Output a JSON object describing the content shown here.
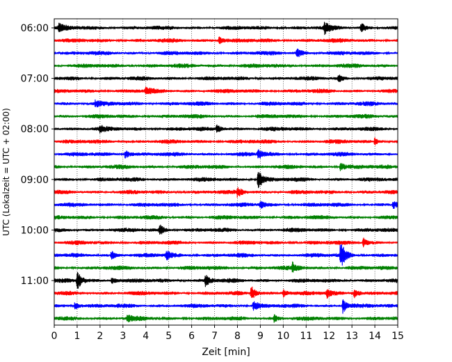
{
  "chart_data": {
    "type": "line",
    "title": "",
    "xlabel": "Zeit  [min]",
    "ylabel": "UTC (Lokalzeit = UTC + 02:00)",
    "xlim": [
      0,
      15
    ],
    "x_ticks": [
      0,
      1,
      2,
      3,
      4,
      5,
      6,
      7,
      8,
      9,
      10,
      11,
      12,
      13,
      14,
      15
    ],
    "x_tick_labels": [
      "0",
      "1",
      "2",
      "3",
      "4",
      "5",
      "6",
      "7",
      "8",
      "9",
      "10",
      "11",
      "12",
      "13",
      "14",
      "15"
    ],
    "y_tick_labels": [
      "06:00",
      "07:00",
      "08:00",
      "09:00",
      "10:00",
      "11:00"
    ],
    "grid": "vertical dotted lines at each minute",
    "series_colors": [
      "#000000",
      "#ff0000",
      "#0000ff",
      "#008000"
    ],
    "traces_per_hour": 4,
    "minutes_per_trace": 15,
    "series": [
      {
        "start": "06:00",
        "color": "#000000",
        "events": [
          {
            "t": 0.2,
            "a": 1.2
          },
          {
            "t": 11.8,
            "a": 1.6
          },
          {
            "t": 13.4,
            "a": 1.3
          }
        ]
      },
      {
        "start": "06:15",
        "color": "#ff0000",
        "events": [
          {
            "t": 7.2,
            "a": 1.2
          }
        ]
      },
      {
        "start": "06:30",
        "color": "#0000ff",
        "events": [
          {
            "t": 10.6,
            "a": 1.3
          }
        ]
      },
      {
        "start": "06:45",
        "color": "#008000",
        "events": []
      },
      {
        "start": "07:00",
        "color": "#000000",
        "events": [
          {
            "t": 12.4,
            "a": 1.0
          }
        ]
      },
      {
        "start": "07:15",
        "color": "#ff0000",
        "events": [
          {
            "t": 4.0,
            "a": 1.0
          }
        ]
      },
      {
        "start": "07:30",
        "color": "#0000ff",
        "events": [
          {
            "t": 1.8,
            "a": 1.0
          }
        ]
      },
      {
        "start": "07:45",
        "color": "#008000",
        "events": []
      },
      {
        "start": "08:00",
        "color": "#000000",
        "events": [
          {
            "t": 2.0,
            "a": 1.0
          },
          {
            "t": 7.1,
            "a": 1.2
          }
        ]
      },
      {
        "start": "08:15",
        "color": "#ff0000",
        "events": [
          {
            "t": 14.0,
            "a": 1.0
          }
        ]
      },
      {
        "start": "08:30",
        "color": "#0000ff",
        "events": [
          {
            "t": 3.1,
            "a": 1.5
          },
          {
            "t": 8.9,
            "a": 1.3
          }
        ]
      },
      {
        "start": "08:45",
        "color": "#008000",
        "events": [
          {
            "t": 12.5,
            "a": 1.3
          }
        ]
      },
      {
        "start": "09:00",
        "color": "#000000",
        "events": [
          {
            "t": 8.9,
            "a": 3.2
          }
        ]
      },
      {
        "start": "09:15",
        "color": "#ff0000",
        "events": [
          {
            "t": 8.0,
            "a": 1.6
          }
        ]
      },
      {
        "start": "09:30",
        "color": "#0000ff",
        "events": [
          {
            "t": 9.0,
            "a": 1.2
          },
          {
            "t": 14.8,
            "a": 1.3
          }
        ]
      },
      {
        "start": "09:45",
        "color": "#008000",
        "events": []
      },
      {
        "start": "10:00",
        "color": "#000000",
        "events": [
          {
            "t": 4.6,
            "a": 1.6
          }
        ]
      },
      {
        "start": "10:15",
        "color": "#ff0000",
        "events": [
          {
            "t": 13.5,
            "a": 1.3
          }
        ]
      },
      {
        "start": "10:30",
        "color": "#0000ff",
        "events": [
          {
            "t": 12.5,
            "a": 4.2
          },
          {
            "t": 4.9,
            "a": 1.4
          },
          {
            "t": 2.5,
            "a": 1.2
          }
        ]
      },
      {
        "start": "10:45",
        "color": "#008000",
        "events": [
          {
            "t": 10.4,
            "a": 1.4
          }
        ]
      },
      {
        "start": "11:00",
        "color": "#000000",
        "events": [
          {
            "t": 1.0,
            "a": 3.0
          },
          {
            "t": 6.6,
            "a": 1.8
          },
          {
            "t": 2.5,
            "a": 1.0
          }
        ]
      },
      {
        "start": "11:15",
        "color": "#ff0000",
        "events": [
          {
            "t": 8.6,
            "a": 2.2
          },
          {
            "t": 11.9,
            "a": 1.4
          },
          {
            "t": 13.1,
            "a": 1.5
          },
          {
            "t": 10.0,
            "a": 1.2
          }
        ]
      },
      {
        "start": "11:30",
        "color": "#0000ff",
        "events": [
          {
            "t": 12.6,
            "a": 2.2
          },
          {
            "t": 8.7,
            "a": 1.6
          },
          {
            "t": 0.9,
            "a": 1.2
          }
        ]
      },
      {
        "start": "11:45",
        "color": "#008000",
        "events": [
          {
            "t": 3.2,
            "a": 1.0
          },
          {
            "t": 9.6,
            "a": 1.1
          }
        ]
      }
    ]
  }
}
